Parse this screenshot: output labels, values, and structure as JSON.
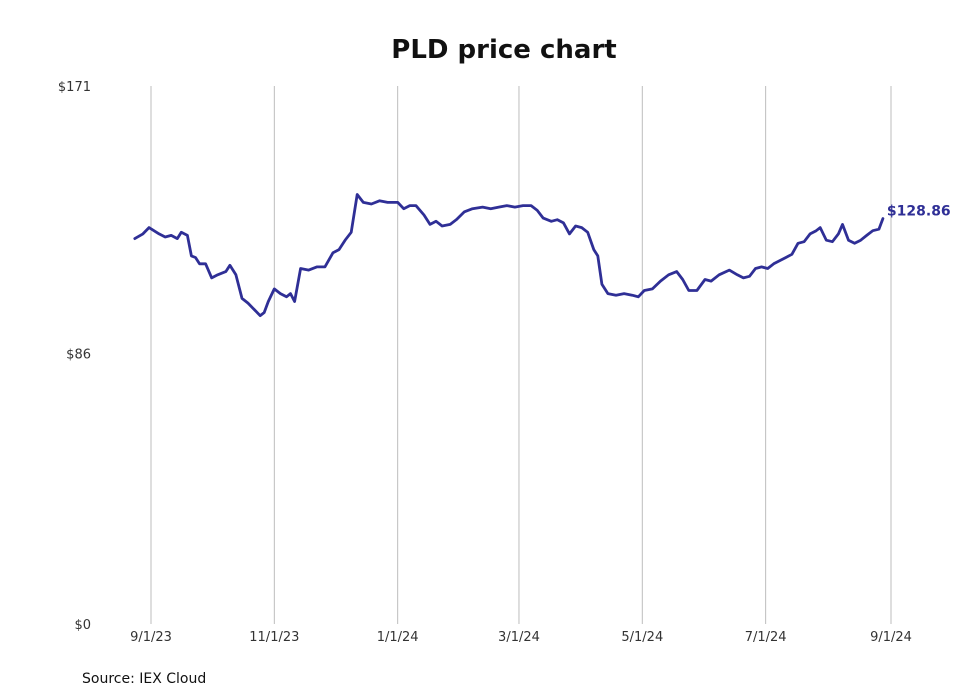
{
  "chart_data": {
    "type": "line",
    "title": "PLD price chart",
    "xlabel": "",
    "ylabel": "",
    "source": "Source: IEX Cloud",
    "y_ticks": [
      "$171",
      "$86",
      "$0"
    ],
    "y_tick_values": [
      171,
      86,
      0
    ],
    "ylim": [
      0,
      171
    ],
    "x_ticks": [
      "9/1/23",
      "11/1/23",
      "1/1/24",
      "3/1/24",
      "5/1/24",
      "7/1/24",
      "9/1/24"
    ],
    "x_tick_dates": [
      "2023-09-01",
      "2023-11-01",
      "2024-01-01",
      "2024-03-01",
      "2024-05-01",
      "2024-07-01",
      "2024-09-01"
    ],
    "xlim": [
      "2023-08-24",
      "2024-09-05"
    ],
    "grid": "vertical",
    "line_color": "#2f2f96",
    "last_value_label": "$128.86",
    "series": [
      {
        "values": [
          [
            "2023-08-24",
            122.5
          ],
          [
            "2023-08-28",
            124.0
          ],
          [
            "2023-08-31",
            126.0
          ],
          [
            "2023-09-05",
            124.0
          ],
          [
            "2023-09-08",
            123.0
          ],
          [
            "2023-09-11",
            123.5
          ],
          [
            "2023-09-14",
            122.5
          ],
          [
            "2023-09-16",
            124.5
          ],
          [
            "2023-09-19",
            123.5
          ],
          [
            "2023-09-21",
            117.0
          ],
          [
            "2023-09-23",
            116.5
          ],
          [
            "2023-09-25",
            114.5
          ],
          [
            "2023-09-28",
            114.5
          ],
          [
            "2023-10-01",
            110.0
          ],
          [
            "2023-10-04",
            111.0
          ],
          [
            "2023-10-08",
            112.0
          ],
          [
            "2023-10-10",
            114.0
          ],
          [
            "2023-10-13",
            111.0
          ],
          [
            "2023-10-16",
            103.5
          ],
          [
            "2023-10-19",
            102.0
          ],
          [
            "2023-10-22",
            100.0
          ],
          [
            "2023-10-25",
            98.0
          ],
          [
            "2023-10-27",
            99.0
          ],
          [
            "2023-10-29",
            102.5
          ],
          [
            "2023-11-01",
            106.5
          ],
          [
            "2023-11-04",
            105.0
          ],
          [
            "2023-11-07",
            104.0
          ],
          [
            "2023-11-09",
            105.0
          ],
          [
            "2023-11-11",
            102.5
          ],
          [
            "2023-11-14",
            113.0
          ],
          [
            "2023-11-18",
            112.5
          ],
          [
            "2023-11-22",
            113.5
          ],
          [
            "2023-11-26",
            113.5
          ],
          [
            "2023-11-30",
            118.0
          ],
          [
            "2023-12-03",
            119.0
          ],
          [
            "2023-12-06",
            122.0
          ],
          [
            "2023-12-09",
            124.5
          ],
          [
            "2023-12-12",
            136.5
          ],
          [
            "2023-12-15",
            134.0
          ],
          [
            "2023-12-19",
            133.5
          ],
          [
            "2023-12-23",
            134.5
          ],
          [
            "2023-12-27",
            134.0
          ],
          [
            "2024-01-01",
            134.0
          ],
          [
            "2024-01-04",
            132.0
          ],
          [
            "2024-01-07",
            133.0
          ],
          [
            "2024-01-10",
            133.0
          ],
          [
            "2024-01-14",
            130.0
          ],
          [
            "2024-01-17",
            127.0
          ],
          [
            "2024-01-20",
            128.0
          ],
          [
            "2024-01-23",
            126.5
          ],
          [
            "2024-01-27",
            127.0
          ],
          [
            "2024-01-30",
            128.5
          ],
          [
            "2024-02-03",
            131.0
          ],
          [
            "2024-02-07",
            132.0
          ],
          [
            "2024-02-12",
            132.5
          ],
          [
            "2024-02-16",
            132.0
          ],
          [
            "2024-02-20",
            132.5
          ],
          [
            "2024-02-24",
            133.0
          ],
          [
            "2024-02-28",
            132.5
          ],
          [
            "2024-03-03",
            133.0
          ],
          [
            "2024-03-07",
            133.0
          ],
          [
            "2024-03-10",
            131.5
          ],
          [
            "2024-03-13",
            129.0
          ],
          [
            "2024-03-17",
            128.0
          ],
          [
            "2024-03-20",
            128.5
          ],
          [
            "2024-03-23",
            127.5
          ],
          [
            "2024-03-26",
            124.0
          ],
          [
            "2024-03-29",
            126.5
          ],
          [
            "2024-04-01",
            126.0
          ],
          [
            "2024-04-04",
            124.5
          ],
          [
            "2024-04-07",
            119.0
          ],
          [
            "2024-04-09",
            117.0
          ],
          [
            "2024-04-11",
            108.0
          ],
          [
            "2024-04-14",
            105.0
          ],
          [
            "2024-04-18",
            104.5
          ],
          [
            "2024-04-22",
            105.0
          ],
          [
            "2024-04-26",
            104.5
          ],
          [
            "2024-04-29",
            104.0
          ],
          [
            "2024-05-02",
            106.0
          ],
          [
            "2024-05-06",
            106.5
          ],
          [
            "2024-05-10",
            109.0
          ],
          [
            "2024-05-14",
            111.0
          ],
          [
            "2024-05-18",
            112.0
          ],
          [
            "2024-05-21",
            109.5
          ],
          [
            "2024-05-24",
            106.0
          ],
          [
            "2024-05-28",
            106.0
          ],
          [
            "2024-06-01",
            109.5
          ],
          [
            "2024-06-04",
            109.0
          ],
          [
            "2024-06-08",
            111.0
          ],
          [
            "2024-06-13",
            112.5
          ],
          [
            "2024-06-17",
            111.0
          ],
          [
            "2024-06-20",
            110.0
          ],
          [
            "2024-06-23",
            110.5
          ],
          [
            "2024-06-26",
            113.0
          ],
          [
            "2024-06-29",
            113.5
          ],
          [
            "2024-07-02",
            113.0
          ],
          [
            "2024-07-05",
            114.5
          ],
          [
            "2024-07-08",
            115.5
          ],
          [
            "2024-07-11",
            116.5
          ],
          [
            "2024-07-14",
            117.5
          ],
          [
            "2024-07-17",
            121.0
          ],
          [
            "2024-07-20",
            121.5
          ],
          [
            "2024-07-23",
            124.0
          ],
          [
            "2024-07-26",
            125.0
          ],
          [
            "2024-07-28",
            126.0
          ],
          [
            "2024-07-31",
            122.0
          ],
          [
            "2024-08-03",
            121.5
          ],
          [
            "2024-08-06",
            124.0
          ],
          [
            "2024-08-08",
            127.0
          ],
          [
            "2024-08-11",
            122.0
          ],
          [
            "2024-08-14",
            121.0
          ],
          [
            "2024-08-17",
            122.0
          ],
          [
            "2024-08-20",
            123.5
          ],
          [
            "2024-08-23",
            125.0
          ],
          [
            "2024-08-26",
            125.5
          ],
          [
            "2024-08-28",
            128.86
          ]
        ]
      }
    ]
  }
}
